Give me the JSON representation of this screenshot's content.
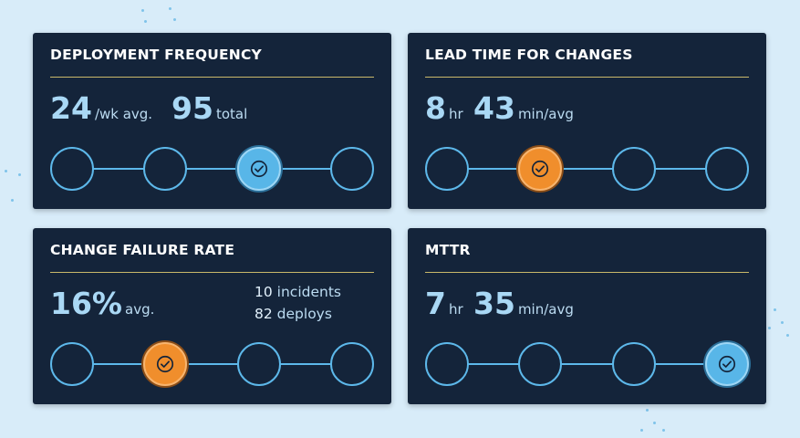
{
  "colors": {
    "background": "#d8ecf9",
    "card": "#14243a",
    "accent_rule": "#c9b86a",
    "track": "#5db8ea",
    "selected_blue": "#58b6e8",
    "selected_orange": "#f08e2c"
  },
  "cards": [
    {
      "title": "DEPLOYMENT FREQUENCY",
      "metrics": [
        {
          "value": "24",
          "unit": "/wk avg."
        },
        {
          "value": "95",
          "unit": "total"
        }
      ],
      "stage_count": 4,
      "active_stage": 3,
      "active_color": "blue",
      "icon": "check-circle-icon"
    },
    {
      "title": "LEAD TIME FOR CHANGES",
      "metrics": [
        {
          "value": "8",
          "unit": "hr"
        },
        {
          "value": "43",
          "unit": "min/avg"
        }
      ],
      "stage_count": 4,
      "active_stage": 2,
      "active_color": "orange",
      "icon": "check-circle-icon"
    },
    {
      "title": "CHANGE FAILURE RATE",
      "metrics": [
        {
          "value": "16%",
          "unit": "avg."
        }
      ],
      "side": [
        {
          "value": "10",
          "label": "incidents"
        },
        {
          "value": "82",
          "label": "deploys"
        }
      ],
      "stage_count": 4,
      "active_stage": 2,
      "active_color": "orange",
      "icon": "check-circle-icon"
    },
    {
      "title": "MTTR",
      "metrics": [
        {
          "value": "7",
          "unit": "hr"
        },
        {
          "value": "35",
          "unit": "min/avg"
        }
      ],
      "stage_count": 4,
      "active_stage": 4,
      "active_color": "blue",
      "icon": "check-circle-icon"
    }
  ]
}
